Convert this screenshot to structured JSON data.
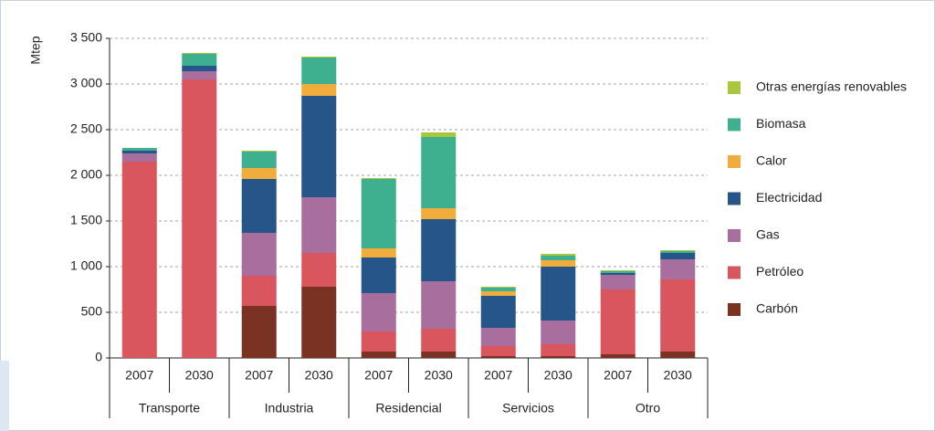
{
  "chart_data": {
    "type": "stacked_bar",
    "y_label": "Mtep",
    "categories": [
      "2007",
      "2030",
      "2007",
      "2030",
      "2007",
      "2030",
      "2007",
      "2030",
      "2007",
      "2030"
    ],
    "groups": [
      "Transporte",
      "Industria",
      "Residencial",
      "Servicios",
      "Otro"
    ],
    "series": [
      {
        "name": "Carbón",
        "color": "#7a3223",
        "values": [
          0,
          0,
          570,
          780,
          70,
          70,
          20,
          20,
          40,
          70
        ]
      },
      {
        "name": "Petróleo",
        "color": "#d9565e",
        "values": [
          2150,
          3050,
          330,
          370,
          220,
          250,
          110,
          130,
          710,
          790
        ]
      },
      {
        "name": "Gas",
        "color": "#a86f9e",
        "values": [
          90,
          90,
          470,
          610,
          420,
          520,
          200,
          260,
          160,
          220
        ]
      },
      {
        "name": "Electricidad",
        "color": "#26558a",
        "values": [
          30,
          60,
          590,
          1110,
          390,
          680,
          350,
          590,
          20,
          70
        ]
      },
      {
        "name": "Calor",
        "color": "#f0ad3c",
        "values": [
          0,
          0,
          120,
          130,
          100,
          120,
          50,
          70,
          0,
          0
        ]
      },
      {
        "name": "Biomasa",
        "color": "#3fb08f",
        "values": [
          30,
          130,
          180,
          290,
          760,
          780,
          40,
          50,
          20,
          20
        ]
      },
      {
        "name": "Otras energías renovables",
        "color": "#a8c83c",
        "values": [
          0,
          10,
          10,
          10,
          10,
          50,
          10,
          20,
          10,
          10
        ]
      }
    ],
    "ylim": [
      0,
      3500
    ],
    "yticks": [
      0,
      500,
      {
        "value": 1000,
        "label": "1 000"
      },
      {
        "value": 1500,
        "label": "1 500"
      },
      {
        "value": 2000,
        "label": "2 000"
      },
      {
        "value": 2500,
        "label": "2 500"
      },
      {
        "value": 3000,
        "label": "3 000"
      },
      {
        "value": 3500,
        "label": "3 500"
      }
    ],
    "grid": true,
    "legend": "right"
  }
}
